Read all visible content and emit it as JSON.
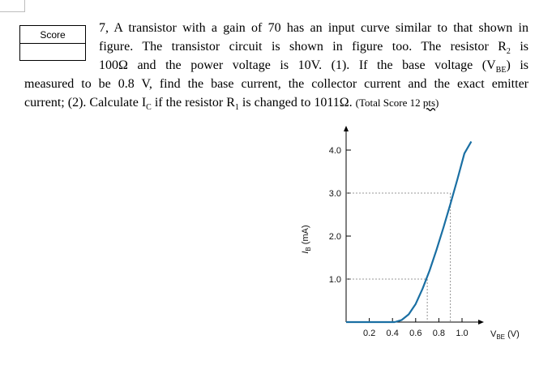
{
  "question": {
    "score_label": "Score",
    "line1": "7, A transistor with a gain of 70 has an input curve similar to that shown in",
    "line2_a": "figure. The transistor circuit is shown in figure too. The resistor R",
    "line2_sub": "2",
    "line2_b": " is",
    "line3_a": "100Ω and the power voltage is 10V. (1). If the base voltage (V",
    "line3_sub": "BE",
    "line3_b": ") is",
    "line4": "measured to be 0.8 V, find the base current, the collector current and the exact emitter",
    "line5_a": "current; (2). Calculate I",
    "line5_sub1": "C",
    "line5_b": " if the resistor R",
    "line5_sub2": "1",
    "line5_c": " is changed to 1011Ω. ",
    "line5_total": "(Total Score 12 ",
    "line5_pts": "pts",
    "line5_end": ")"
  },
  "chart_data": {
    "type": "line",
    "ylabel": "I_B (mA)",
    "ylabel_main": "I",
    "ylabel_sub": "B",
    "ylabel_unit": " (mA)",
    "xlabel": "V_BE (V)",
    "xlabel_main": "V",
    "xlabel_sub": "BE",
    "xlabel_unit": " (V)",
    "y_ticks": [
      "1.0",
      "2.0",
      "3.0",
      "4.0"
    ],
    "y_tick_values": [
      1.0,
      2.0,
      3.0,
      4.0
    ],
    "x_ticks": [
      "0.2",
      "0.4",
      "0.6",
      "0.8",
      "1.0"
    ],
    "x_tick_values": [
      0.2,
      0.4,
      0.6,
      0.8,
      1.0
    ],
    "xlim": [
      0,
      1.2
    ],
    "ylim": [
      0,
      4.5
    ],
    "series": [
      {
        "x": [
          0.42,
          0.48,
          0.54,
          0.6,
          0.66,
          0.72,
          0.78,
          0.84,
          0.9,
          0.96,
          1.02,
          1.08
        ],
        "y": [
          0.0,
          0.05,
          0.18,
          0.42,
          0.78,
          1.2,
          1.68,
          2.2,
          2.75,
          3.32,
          3.92,
          4.2
        ]
      }
    ],
    "guides": [
      {
        "x": 0.7,
        "y": 1.0
      },
      {
        "x": 0.9,
        "y": 3.0
      }
    ],
    "curve_color": "#1a6fa3"
  }
}
